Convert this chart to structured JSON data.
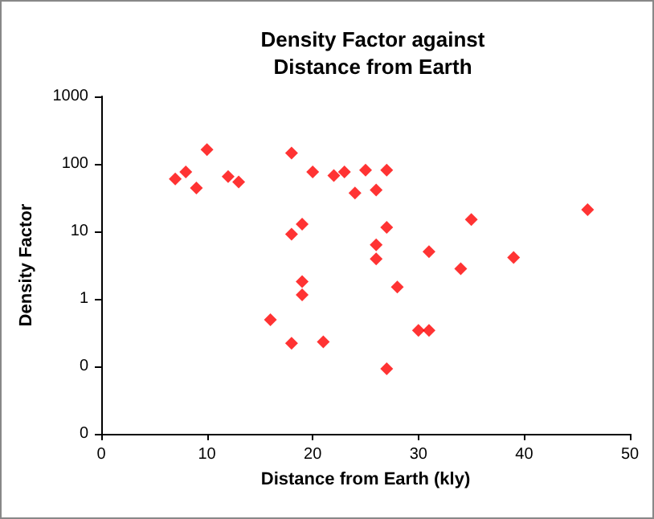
{
  "chart_data": {
    "type": "scatter",
    "title": "Density Factor against\nDistance from Earth",
    "xlabel": "Distance from Earth (kly)",
    "ylabel": "Density Factor",
    "log": "y",
    "grid": false,
    "marker": "diamond",
    "xlim": [
      0,
      50
    ],
    "xticks": [
      0,
      10,
      20,
      30,
      40,
      50
    ],
    "ylim": [
      0.01,
      1000
    ],
    "yticks": [
      {
        "value": 0.01,
        "label": "0"
      },
      {
        "value": 0.1,
        "label": "0"
      },
      1,
      10,
      100,
      1000
    ],
    "series": [
      {
        "color": "#ff0000",
        "x": [
          7,
          8,
          9,
          10,
          12,
          13,
          18,
          20,
          18,
          19,
          19,
          19,
          16,
          18,
          21,
          22,
          23,
          25,
          27,
          24,
          26,
          27,
          26,
          26,
          28,
          31,
          35,
          34,
          39,
          46,
          30,
          31,
          27
        ],
        "values": [
          60,
          76,
          44,
          163,
          65,
          54,
          145,
          76,
          9.1,
          12.8,
          1.8,
          1.15,
          0.49,
          0.22,
          0.23,
          67,
          76,
          81,
          81,
          37,
          41,
          11.5,
          6.3,
          3.9,
          1.5,
          5,
          15,
          2.8,
          4.1,
          21,
          0.34,
          0.34,
          0.092
        ]
      }
    ]
  }
}
